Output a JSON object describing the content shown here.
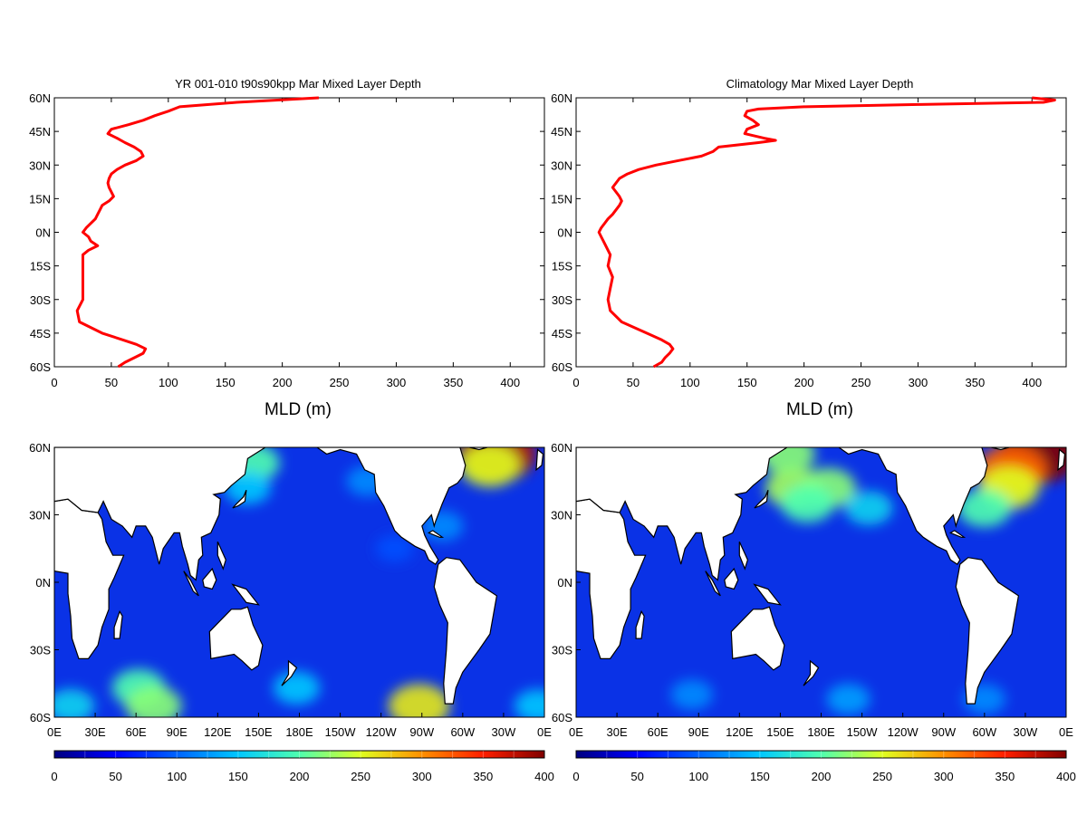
{
  "chart_data": [
    {
      "type": "line",
      "title": "YR 001-010 t90s90kpp Mar Mixed Layer Depth",
      "xlabel": "MLD (m)",
      "ylabel": "",
      "xlim": [
        0,
        430
      ],
      "ylim": [
        -60,
        60
      ],
      "x_ticks": [
        "0",
        "50",
        "100",
        "150",
        "200",
        "250",
        "300",
        "350",
        "400"
      ],
      "y_ticks": [
        "60N",
        "45N",
        "30N",
        "15N",
        "0N",
        "15S",
        "30S",
        "45S",
        "60S"
      ],
      "line_color": "#ff0000",
      "grid": false,
      "series": [
        {
          "lat": [
            60,
            58,
            56,
            54,
            52,
            50,
            48,
            46,
            44,
            42,
            40,
            38,
            36,
            34,
            32,
            30,
            28,
            26,
            24,
            22,
            20,
            18,
            16,
            14,
            12,
            10,
            8,
            6,
            4,
            2,
            0,
            -2,
            -4,
            -6,
            -8,
            -10,
            -15,
            -20,
            -25,
            -30,
            -35,
            -40,
            -45,
            -48,
            -50,
            -52,
            -54,
            -56,
            -58,
            -60
          ],
          "mld": [
            232,
            160,
            110,
            100,
            88,
            78,
            65,
            50,
            47,
            55,
            62,
            70,
            76,
            78,
            72,
            62,
            55,
            50,
            48,
            47,
            48,
            50,
            52,
            48,
            42,
            40,
            38,
            36,
            32,
            28,
            25,
            30,
            32,
            38,
            30,
            25,
            25,
            25,
            25,
            25,
            20,
            22,
            42,
            60,
            72,
            80,
            78,
            70,
            62,
            56
          ]
        }
      ]
    },
    {
      "type": "line",
      "title": "Climatology Mar Mixed Layer Depth",
      "xlabel": "MLD (m)",
      "ylabel": "",
      "xlim": [
        0,
        430
      ],
      "ylim": [
        -60,
        60
      ],
      "x_ticks": [
        "0",
        "50",
        "100",
        "150",
        "200",
        "250",
        "300",
        "350",
        "400"
      ],
      "y_ticks": [
        "60N",
        "45N",
        "30N",
        "15N",
        "0N",
        "15S",
        "30S",
        "45S",
        "60S"
      ],
      "line_color": "#ff0000",
      "grid": false,
      "series": [
        {
          "lat": [
            60,
            59,
            58,
            57,
            56,
            55,
            54,
            52,
            50,
            48,
            46,
            44,
            42,
            41,
            40,
            38,
            36,
            34,
            32,
            30,
            28,
            26,
            24,
            22,
            20,
            18,
            16,
            14,
            12,
            10,
            8,
            6,
            4,
            2,
            0,
            -2,
            -5,
            -10,
            -15,
            -20,
            -25,
            -30,
            -35,
            -40,
            -45,
            -48,
            -50,
            -52,
            -54,
            -56,
            -58,
            -60
          ],
          "mld": [
            400,
            420,
            410,
            300,
            200,
            160,
            150,
            148,
            155,
            160,
            150,
            148,
            165,
            175,
            160,
            125,
            120,
            110,
            90,
            70,
            55,
            45,
            38,
            35,
            32,
            35,
            38,
            40,
            38,
            35,
            32,
            28,
            25,
            22,
            20,
            22,
            25,
            30,
            28,
            32,
            30,
            28,
            30,
            40,
            62,
            75,
            82,
            85,
            82,
            78,
            75,
            68
          ]
        }
      ]
    },
    {
      "type": "heatmap",
      "title": "",
      "xlim": [
        0,
        360
      ],
      "ylim": [
        -60,
        60
      ],
      "x_ticks": [
        "0E",
        "30E",
        "60E",
        "90E",
        "120E",
        "150E",
        "180E",
        "150W",
        "120W",
        "90W",
        "60W",
        "30W",
        "0E"
      ],
      "y_ticks": [
        "60N",
        "30N",
        "0N",
        "30S",
        "60S"
      ],
      "colorbar_ticks": [
        "0",
        "50",
        "100",
        "150",
        "200",
        "250",
        "300",
        "350",
        "400"
      ],
      "colorbar_range": [
        0,
        400
      ],
      "hotspots": [
        {
          "lon": 325,
          "lat": 57,
          "value": 380
        },
        {
          "lon": 320,
          "lat": 52,
          "value": 250
        },
        {
          "lon": 146,
          "lat": 53,
          "value": 200
        },
        {
          "lon": 142,
          "lat": 42,
          "value": 150
        },
        {
          "lon": 230,
          "lat": 45,
          "value": 120
        },
        {
          "lon": 250,
          "lat": 15,
          "value": 90
        },
        {
          "lon": 285,
          "lat": 25,
          "value": 120
        },
        {
          "lon": 62,
          "lat": -47,
          "value": 200
        },
        {
          "lon": 73,
          "lat": -55,
          "value": 220
        },
        {
          "lon": 12,
          "lat": -55,
          "value": 160
        },
        {
          "lon": 178,
          "lat": -47,
          "value": 150
        },
        {
          "lon": 268,
          "lat": -55,
          "value": 260
        },
        {
          "lon": 355,
          "lat": -55,
          "value": 150
        }
      ]
    },
    {
      "type": "heatmap",
      "title": "",
      "xlim": [
        0,
        360
      ],
      "ylim": [
        -60,
        60
      ],
      "x_ticks": [
        "0E",
        "30E",
        "60E",
        "90E",
        "120E",
        "150E",
        "180E",
        "150W",
        "120W",
        "90W",
        "60W",
        "30W",
        "0E"
      ],
      "y_ticks": [
        "60N",
        "30N",
        "0N",
        "30S",
        "60S"
      ],
      "colorbar_ticks": [
        "0",
        "50",
        "100",
        "150",
        "200",
        "250",
        "300",
        "350",
        "400"
      ],
      "colorbar_range": [
        0,
        400
      ],
      "hotspots": [
        {
          "lon": 340,
          "lat": 57,
          "value": 400
        },
        {
          "lon": 320,
          "lat": 50,
          "value": 320
        },
        {
          "lon": 318,
          "lat": 42,
          "value": 250
        },
        {
          "lon": 160,
          "lat": 42,
          "value": 230
        },
        {
          "lon": 185,
          "lat": 42,
          "value": 220
        },
        {
          "lon": 170,
          "lat": 35,
          "value": 200
        },
        {
          "lon": 155,
          "lat": 57,
          "value": 220
        },
        {
          "lon": 215,
          "lat": 33,
          "value": 160
        },
        {
          "lon": 300,
          "lat": 33,
          "value": 200
        },
        {
          "lon": 85,
          "lat": -50,
          "value": 120
        },
        {
          "lon": 200,
          "lat": -52,
          "value": 130
        },
        {
          "lon": 300,
          "lat": -52,
          "value": 120
        }
      ]
    }
  ]
}
